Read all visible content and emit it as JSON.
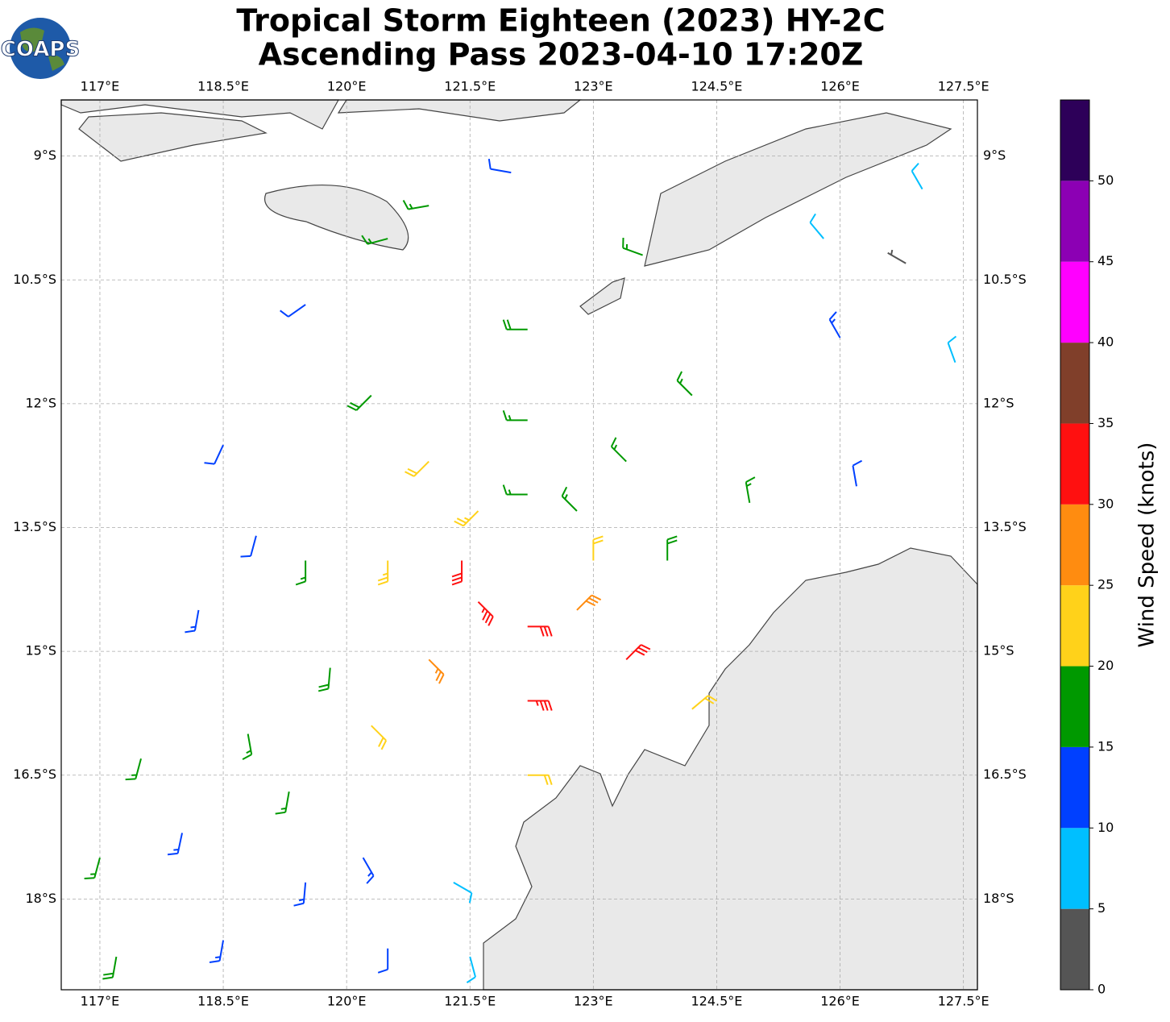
{
  "chart_data": {
    "type": "wind_barbs",
    "title": "Tropical Storm Eighteen (2023) HY-2C",
    "subtitle": "Ascending Pass 2023-04-10 17:20Z",
    "logo": "COAPS",
    "xlim": [
      116.53,
      127.67
    ],
    "ylim": [
      -19.1,
      -8.32
    ],
    "xticks": [
      {
        "value": 117,
        "label": "117°E"
      },
      {
        "value": 118.5,
        "label": "118.5°E"
      },
      {
        "value": 120,
        "label": "120°E"
      },
      {
        "value": 121.5,
        "label": "121.5°E"
      },
      {
        "value": 123,
        "label": "123°E"
      },
      {
        "value": 124.5,
        "label": "124.5°E"
      },
      {
        "value": 126,
        "label": "126°E"
      },
      {
        "value": 127.5,
        "label": "127.5°E"
      }
    ],
    "yticks": [
      {
        "value": -9,
        "label": "9°S"
      },
      {
        "value": -10.5,
        "label": "10.5°S"
      },
      {
        "value": -12,
        "label": "12°S"
      },
      {
        "value": -13.5,
        "label": "13.5°S"
      },
      {
        "value": -15,
        "label": "15°S"
      },
      {
        "value": -16.5,
        "label": "16.5°S"
      },
      {
        "value": -18,
        "label": "18°S"
      }
    ],
    "grid": true,
    "barbs": [
      {
        "lon": 123.0,
        "lat": -13.9,
        "speed": 22,
        "dir": 0
      },
      {
        "lon": 122.8,
        "lat": -14.5,
        "speed": 28,
        "dir": 45
      },
      {
        "lon": 122.2,
        "lat": -14.7,
        "speed": 32,
        "dir": 90
      },
      {
        "lon": 121.6,
        "lat": -14.4,
        "speed": 33,
        "dir": 135
      },
      {
        "lon": 121.4,
        "lat": -13.9,
        "speed": 31,
        "dir": 180
      },
      {
        "lon": 121.6,
        "lat": -13.3,
        "speed": 24,
        "dir": 225
      },
      {
        "lon": 122.2,
        "lat": -13.1,
        "speed": 16,
        "dir": 270
      },
      {
        "lon": 122.8,
        "lat": -13.3,
        "speed": 17,
        "dir": 315
      },
      {
        "lon": 123.9,
        "lat": -13.9,
        "speed": 19,
        "dir": 0
      },
      {
        "lon": 123.4,
        "lat": -15.1,
        "speed": 30,
        "dir": 45
      },
      {
        "lon": 122.2,
        "lat": -15.6,
        "speed": 33,
        "dir": 90
      },
      {
        "lon": 121.0,
        "lat": -15.1,
        "speed": 27,
        "dir": 135
      },
      {
        "lon": 120.5,
        "lat": -13.9,
        "speed": 24,
        "dir": 180
      },
      {
        "lon": 121.0,
        "lat": -12.7,
        "speed": 21,
        "dir": 225
      },
      {
        "lon": 122.2,
        "lat": -12.2,
        "speed": 17,
        "dir": 270
      },
      {
        "lon": 123.4,
        "lat": -12.7,
        "speed": 17,
        "dir": 315
      },
      {
        "lon": 124.9,
        "lat": -13.2,
        "speed": 16,
        "dir": 350
      },
      {
        "lon": 124.2,
        "lat": -15.7,
        "speed": 20,
        "dir": 50
      },
      {
        "lon": 122.2,
        "lat": -16.5,
        "speed": 20,
        "dir": 90
      },
      {
        "lon": 120.3,
        "lat": -15.9,
        "speed": 22,
        "dir": 135
      },
      {
        "lon": 119.5,
        "lat": -13.9,
        "speed": 16,
        "dir": 180
      },
      {
        "lon": 120.3,
        "lat": -11.9,
        "speed": 18,
        "dir": 225
      },
      {
        "lon": 122.2,
        "lat": -11.1,
        "speed": 18,
        "dir": 270
      },
      {
        "lon": 124.2,
        "lat": -11.9,
        "speed": 16,
        "dir": 315
      },
      {
        "lon": 126.2,
        "lat": -13.0,
        "speed": 12,
        "dir": 350
      },
      {
        "lon": 126.0,
        "lat": -11.2,
        "speed": 13,
        "dir": 330
      },
      {
        "lon": 123.6,
        "lat": -10.2,
        "speed": 17,
        "dir": 290
      },
      {
        "lon": 121.0,
        "lat": -9.6,
        "speed": 16,
        "dir": 260
      },
      {
        "lon": 119.5,
        "lat": -10.8,
        "speed": 12,
        "dir": 235
      },
      {
        "lon": 118.5,
        "lat": -12.5,
        "speed": 11,
        "dir": 205
      },
      {
        "lon": 118.2,
        "lat": -14.5,
        "speed": 13,
        "dir": 190
      },
      {
        "lon": 118.8,
        "lat": -16.0,
        "speed": 15,
        "dir": 170
      },
      {
        "lon": 120.2,
        "lat": -17.5,
        "speed": 13,
        "dir": 150
      },
      {
        "lon": 121.3,
        "lat": -17.8,
        "speed": 8,
        "dir": 120
      },
      {
        "lon": 125.8,
        "lat": -10.0,
        "speed": 9,
        "dir": 320
      },
      {
        "lon": 127.0,
        "lat": -9.4,
        "speed": 8,
        "dir": 330
      },
      {
        "lon": 127.4,
        "lat": -11.5,
        "speed": 8,
        "dir": 340
      },
      {
        "lon": 126.8,
        "lat": -10.3,
        "speed": 3,
        "dir": 300
      },
      {
        "lon": 117.0,
        "lat": -17.5,
        "speed": 17,
        "dir": 195
      },
      {
        "lon": 117.5,
        "lat": -16.3,
        "speed": 16,
        "dir": 195
      },
      {
        "lon": 117.2,
        "lat": -18.7,
        "speed": 18,
        "dir": 190
      },
      {
        "lon": 118.5,
        "lat": -18.5,
        "speed": 14,
        "dir": 190
      },
      {
        "lon": 119.5,
        "lat": -17.8,
        "speed": 13,
        "dir": 185
      },
      {
        "lon": 120.5,
        "lat": -18.6,
        "speed": 11,
        "dir": 180
      },
      {
        "lon": 118.0,
        "lat": -17.2,
        "speed": 13,
        "dir": 192
      },
      {
        "lon": 119.3,
        "lat": -16.7,
        "speed": 15,
        "dir": 190
      },
      {
        "lon": 119.8,
        "lat": -15.2,
        "speed": 18,
        "dir": 185
      },
      {
        "lon": 118.9,
        "lat": -13.6,
        "speed": 12,
        "dir": 195
      },
      {
        "lon": 121.5,
        "lat": -18.7,
        "speed": 8,
        "dir": 165
      },
      {
        "lon": 122.0,
        "lat": -9.2,
        "speed": 12,
        "dir": 280
      },
      {
        "lon": 120.5,
        "lat": -10.0,
        "speed": 17,
        "dir": 255
      }
    ],
    "colorbar": {
      "label": "Wind Speed (knots)",
      "bounds": [
        0,
        5,
        10,
        15,
        20,
        25,
        30,
        35,
        40,
        45,
        50,
        55
      ],
      "colors": [
        "#555555",
        "#00bfff",
        "#0040ff",
        "#009900",
        "#ffd21a",
        "#ff8c10",
        "#ff1010",
        "#803f2a",
        "#ff00ff",
        "#8c00b4",
        "#2d0059"
      ],
      "ticks": [
        0,
        5,
        10,
        15,
        20,
        25,
        30,
        35,
        40,
        45,
        50
      ]
    }
  }
}
